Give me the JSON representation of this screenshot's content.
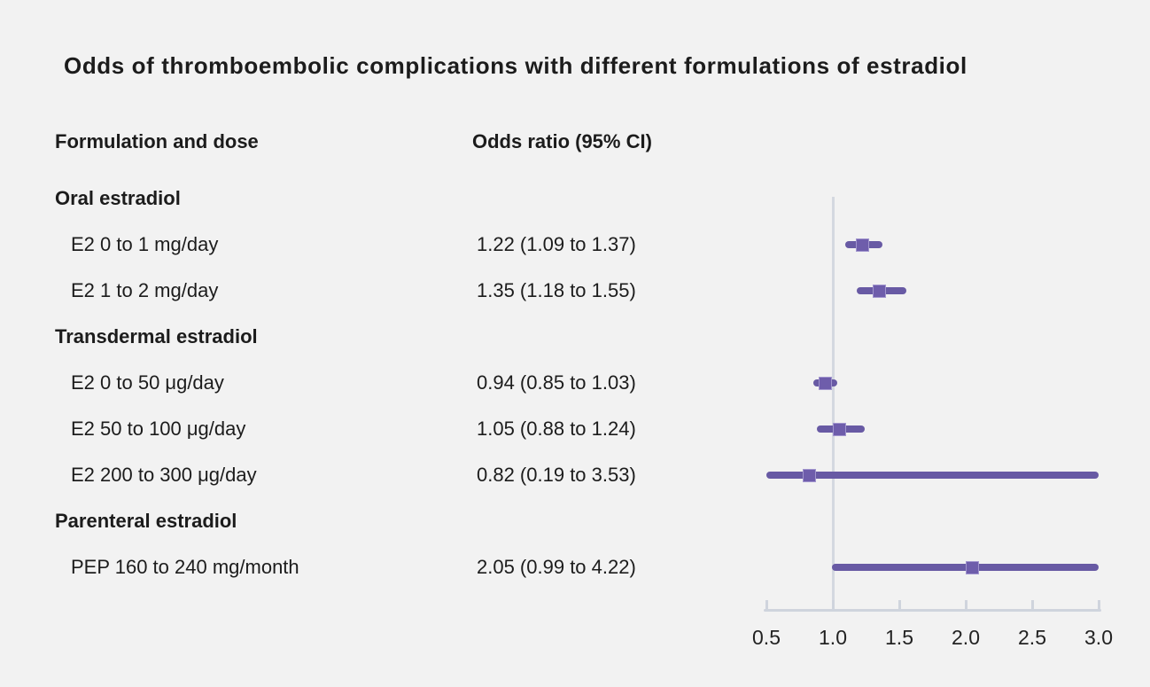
{
  "title": "Odds of thromboembolic complications with different formulations of estradiol",
  "columns": {
    "formulation": "Formulation and dose",
    "odds_ratio": "Odds ratio (95% CI)"
  },
  "colors": {
    "background": "#f2f2f2",
    "text": "#1c1c1c",
    "ci_line": "#685aa4",
    "marker_fill": "#6e5dab",
    "marker_edge": "#a195ce",
    "axis": "#cfd4dd",
    "reference_line": "#d4d8e0"
  },
  "chart_data": {
    "type": "forest",
    "title": "Odds of thromboembolic complications with different formulations of estradiol",
    "xlabel": "Odds ratio",
    "xlim": [
      0.5,
      3.0
    ],
    "x_ticks": [
      "0.5",
      "1.0",
      "1.5",
      "2.0",
      "2.5",
      "3.0"
    ],
    "reference_value": 1.0,
    "legend": "none",
    "grid": "off",
    "groups": [
      {
        "label": "Oral estradiol",
        "rows": [
          {
            "label": "E2 0 to 1 mg/day",
            "value_text": "1.22 (1.09 to 1.37)",
            "or": 1.22,
            "ci_low": 1.09,
            "ci_high": 1.37
          },
          {
            "label": "E2 1 to 2 mg/day",
            "value_text": "1.35 (1.18 to 1.55)",
            "or": 1.35,
            "ci_low": 1.18,
            "ci_high": 1.55
          }
        ]
      },
      {
        "label": "Transdermal estradiol",
        "rows": [
          {
            "label": "E2 0 to 50 μg/day",
            "value_text": "0.94 (0.85 to 1.03)",
            "or": 0.94,
            "ci_low": 0.85,
            "ci_high": 1.03
          },
          {
            "label": "E2 50 to 100 μg/day",
            "value_text": "1.05 (0.88 to 1.24)",
            "or": 1.05,
            "ci_low": 0.88,
            "ci_high": 1.24
          },
          {
            "label": "E2 200 to 300 μg/day",
            "value_text": "0.82 (0.19 to 3.53)",
            "or": 0.82,
            "ci_low": 0.19,
            "ci_high": 3.53
          }
        ]
      },
      {
        "label": "Parenteral estradiol",
        "rows": [
          {
            "label": "PEP 160 to 240 mg/month",
            "value_text": "2.05 (0.99 to 4.22)",
            "or": 2.05,
            "ci_low": 0.99,
            "ci_high": 4.22
          }
        ]
      }
    ]
  }
}
